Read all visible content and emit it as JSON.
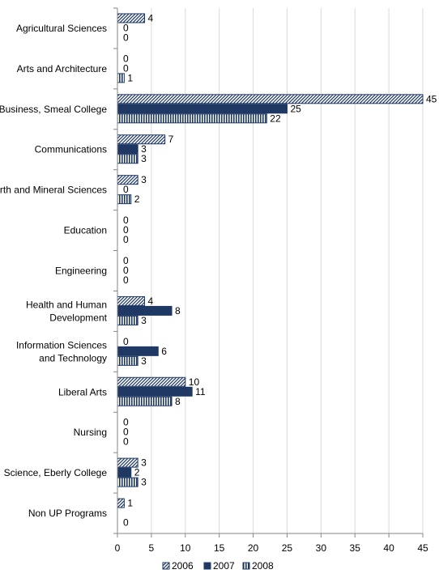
{
  "chart_data": {
    "type": "bar",
    "orientation": "horizontal",
    "categories": [
      "Agricultural Sciences",
      "Arts and Architecture",
      "Business, Smeal College",
      "Communications",
      "Earth and Mineral Sciences",
      "Education",
      "Engineering",
      "Health and Human Development",
      "Information Sciences and Technology",
      "Liberal Arts",
      "Nursing",
      "Science, Eberly College",
      "Non UP Programs"
    ],
    "series": [
      {
        "name": "2006",
        "pattern": "diagonal-hatch",
        "color": "#1F3864",
        "values": [
          4,
          0,
          45,
          7,
          3,
          0,
          0,
          4,
          0,
          10,
          0,
          3,
          1
        ]
      },
      {
        "name": "2007",
        "pattern": "solid",
        "color": "#1F3864",
        "values": [
          0,
          0,
          25,
          3,
          0,
          0,
          0,
          8,
          6,
          11,
          0,
          2,
          null
        ]
      },
      {
        "name": "2008",
        "pattern": "vertical-lines",
        "color": "#1F3864",
        "values": [
          0,
          1,
          22,
          3,
          2,
          0,
          0,
          3,
          3,
          8,
          0,
          3,
          0
        ]
      }
    ],
    "xlim": [
      0,
      45
    ],
    "xticks": [
      0,
      5,
      10,
      15,
      20,
      25,
      30,
      35,
      40,
      45
    ],
    "grid": "vertical",
    "legend": "bottom",
    "data_labels": true
  }
}
